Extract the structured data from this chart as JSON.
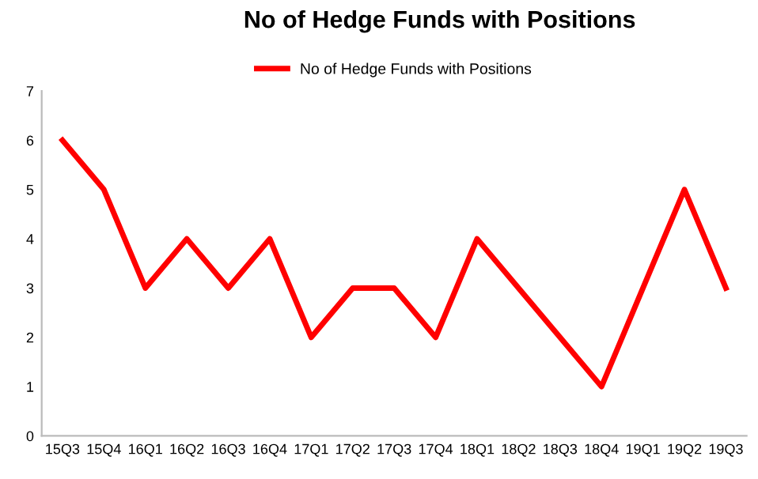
{
  "chart_data": {
    "type": "line",
    "title": "No of Hedge Funds with Positions",
    "categories": [
      "15Q3",
      "15Q4",
      "16Q1",
      "16Q2",
      "16Q3",
      "16Q4",
      "17Q1",
      "17Q2",
      "17Q3",
      "17Q4",
      "18Q1",
      "18Q2",
      "18Q3",
      "18Q4",
      "19Q1",
      "19Q2",
      "19Q3"
    ],
    "series": [
      {
        "name": "No of Hedge Funds with Positions",
        "color": "#ff0000",
        "values": [
          6,
          5,
          3,
          4,
          3,
          4,
          2,
          3,
          3,
          2,
          4,
          3,
          2,
          1,
          3,
          5,
          3
        ]
      }
    ],
    "ylim": [
      0,
      7
    ],
    "yticks": [
      0,
      1,
      2,
      3,
      4,
      5,
      6,
      7
    ],
    "grid": false,
    "legend": "top",
    "marker": "none",
    "line_style": "solid"
  }
}
